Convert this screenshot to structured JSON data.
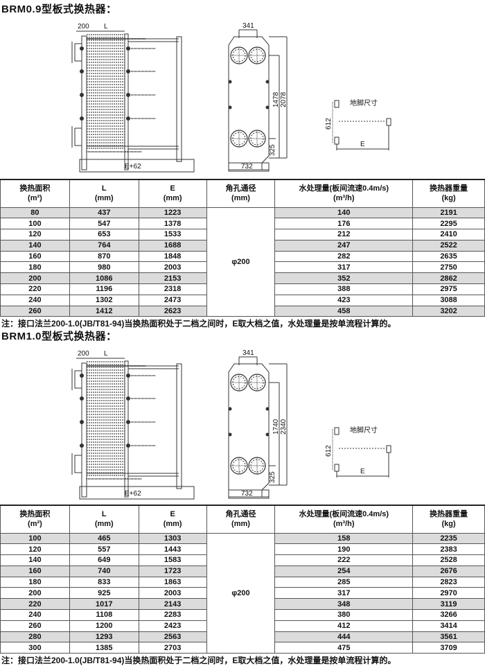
{
  "sections": [
    {
      "title": "BRM0.9型板式换热器：",
      "dims": {
        "a": "200",
        "L": "L",
        "base": "E+62",
        "width_top": "341",
        "h1": "1478",
        "h2": "2078",
        "bottom": "325",
        "width": "732",
        "foot_label": "地脚尺寸",
        "foot_h": "612",
        "foot_E": "E"
      },
      "headers": [
        [
          "换热面积",
          "(m²)"
        ],
        [
          "L",
          "(mm)"
        ],
        [
          "E",
          "(mm)"
        ],
        [
          "角孔通径",
          "(mm)"
        ],
        [
          "水处理量(板间流速0.4m/s)",
          "(m³/h)"
        ],
        [
          "换热器重量",
          "(kg)"
        ]
      ],
      "port": "φ200",
      "rows": [
        [
          "80",
          "437",
          "1223",
          "140",
          "2191"
        ],
        [
          "100",
          "547",
          "1378",
          "176",
          "2295"
        ],
        [
          "120",
          "653",
          "1533",
          "212",
          "2410"
        ],
        [
          "140",
          "764",
          "1688",
          "247",
          "2522"
        ],
        [
          "160",
          "870",
          "1848",
          "282",
          "2635"
        ],
        [
          "180",
          "980",
          "2003",
          "317",
          "2750"
        ],
        [
          "200",
          "1086",
          "2153",
          "352",
          "2862"
        ],
        [
          "220",
          "1196",
          "2318",
          "388",
          "2975"
        ],
        [
          "240",
          "1302",
          "2473",
          "423",
          "3088"
        ],
        [
          "260",
          "1412",
          "2623",
          "458",
          "3202"
        ]
      ],
      "shaded_rows": [
        0,
        3,
        6,
        9
      ],
      "note": "注：接口法兰200-1.0(JB/T81-94)当换热面积处于二档之间时，E取大档之值，水处理量是按单流程计算的。"
    },
    {
      "title": "BRM1.0型板式换热器：",
      "dims": {
        "a": "200",
        "L": "L",
        "base": "E+62",
        "width_top": "341",
        "h1": "1740",
        "h2": "2340",
        "bottom": "325",
        "width": "732",
        "foot_label": "地脚尺寸",
        "foot_h": "612",
        "foot_E": "E"
      },
      "headers": [
        [
          "换热面积",
          "(m²)"
        ],
        [
          "L",
          "(mm)"
        ],
        [
          "E",
          "(mm)"
        ],
        [
          "角孔通径",
          "(mm)"
        ],
        [
          "水处理量(板间流速0.4m/s)",
          "(m³/h)"
        ],
        [
          "换热器重量",
          "(kg)"
        ]
      ],
      "port": "φ200",
      "rows": [
        [
          "100",
          "465",
          "1303",
          "158",
          "2235"
        ],
        [
          "120",
          "557",
          "1443",
          "190",
          "2383"
        ],
        [
          "140",
          "649",
          "1583",
          "222",
          "2528"
        ],
        [
          "160",
          "740",
          "1723",
          "254",
          "2676"
        ],
        [
          "180",
          "833",
          "1863",
          "285",
          "2823"
        ],
        [
          "200",
          "925",
          "2003",
          "317",
          "2970"
        ],
        [
          "220",
          "1017",
          "2143",
          "348",
          "3119"
        ],
        [
          "240",
          "1108",
          "2283",
          "380",
          "3266"
        ],
        [
          "260",
          "1200",
          "2423",
          "412",
          "3414"
        ],
        [
          "280",
          "1293",
          "2563",
          "444",
          "3561"
        ],
        [
          "300",
          "1385",
          "2703",
          "475",
          "3709"
        ]
      ],
      "shaded_rows": [
        0,
        3,
        6,
        9
      ],
      "note": "注：接口法兰200-1.0(JB/T81-94)当换热面积处于二档之间时，E取大档之值，水处理量是按单流程计算的。"
    }
  ]
}
